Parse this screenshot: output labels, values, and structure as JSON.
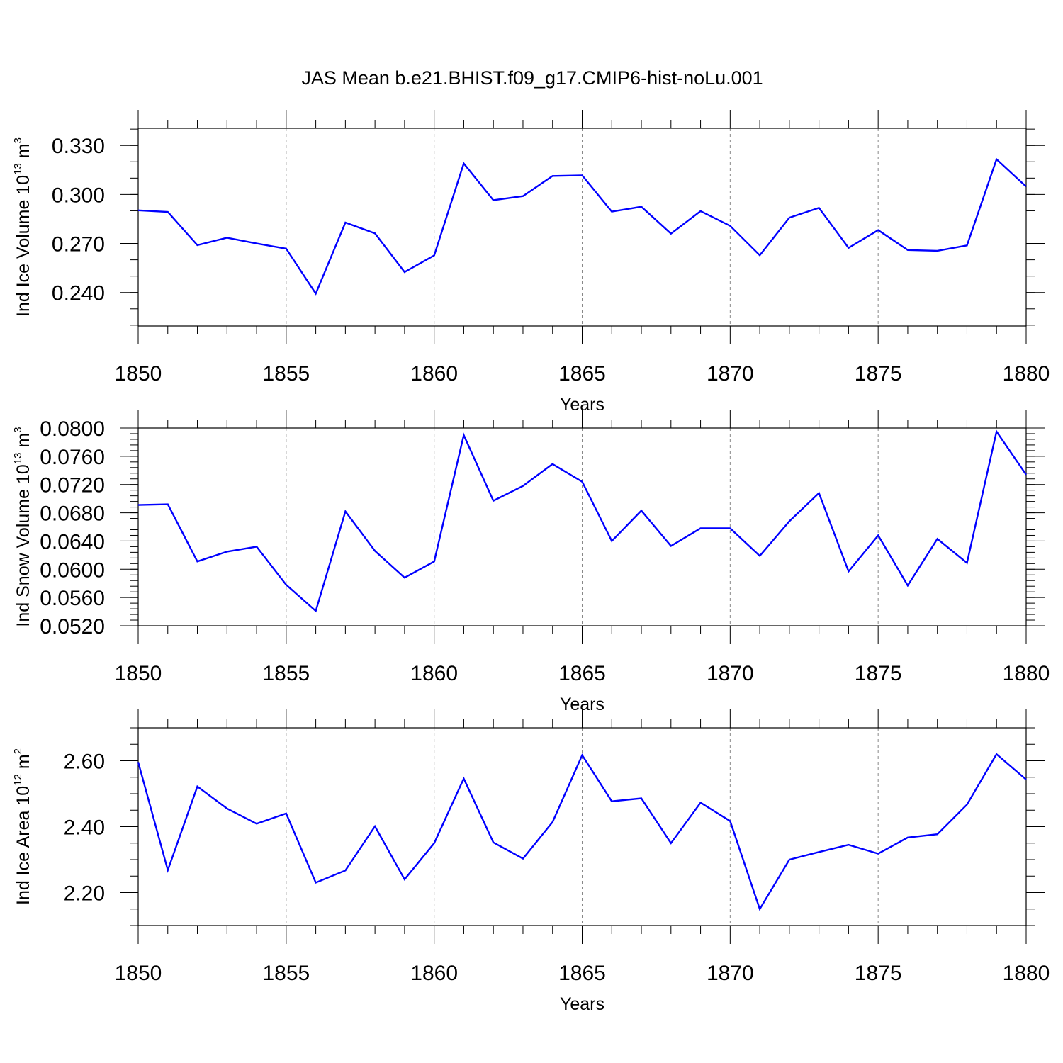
{
  "figure": {
    "title": "JAS Mean b.e21.BHIST.f09_g17.CMIP6-hist-noLu.001",
    "line_color": "#0000ff",
    "frame_color": "#000000",
    "grid_color": "#888888",
    "background": "#ffffff"
  },
  "chart_data": [
    {
      "type": "line",
      "xlabel": "Years",
      "ylabel": {
        "text": "Ind Ice Volume 10",
        "exponent": "13",
        "unit": " m",
        "unit_exponent": "3"
      },
      "xlim": [
        1850,
        1880
      ],
      "ylim": [
        0.2195,
        0.3405
      ],
      "xticks": [
        1850,
        1855,
        1860,
        1865,
        1870,
        1875,
        1880
      ],
      "xtick_labels": [
        "1850",
        "1855",
        "1860",
        "1865",
        "1870",
        "1875",
        "1880"
      ],
      "yticks": [
        0.24,
        0.27,
        0.3,
        0.33
      ],
      "ytick_labels": [
        "0.240",
        "0.270",
        "0.300",
        "0.330"
      ],
      "y_minor_step": 0.01,
      "x": [
        1850,
        1851,
        1852,
        1853,
        1854,
        1855,
        1856,
        1857,
        1858,
        1859,
        1860,
        1861,
        1862,
        1863,
        1864,
        1865,
        1866,
        1867,
        1868,
        1869,
        1870,
        1871,
        1872,
        1873,
        1874,
        1875,
        1876,
        1877,
        1878,
        1879,
        1880
      ],
      "series": [
        {
          "name": "Ind Ice Volume",
          "values": [
            0.2903,
            0.2893,
            0.269,
            0.2735,
            0.27,
            0.2668,
            0.2393,
            0.2828,
            0.2762,
            0.2525,
            0.2627,
            0.319,
            0.2965,
            0.299,
            0.3113,
            0.3117,
            0.2895,
            0.2925,
            0.276,
            0.2898,
            0.2808,
            0.2628,
            0.2858,
            0.2918,
            0.2673,
            0.2782,
            0.266,
            0.2655,
            0.2688,
            0.3215,
            0.3048
          ]
        }
      ]
    },
    {
      "type": "line",
      "xlabel": "Years",
      "ylabel": {
        "text": "Ind Snow Volume 10",
        "exponent": "13",
        "unit": " m",
        "unit_exponent": "3"
      },
      "xlim": [
        1850,
        1880
      ],
      "ylim": [
        0.052,
        0.08
      ],
      "xticks": [
        1850,
        1855,
        1860,
        1865,
        1870,
        1875,
        1880
      ],
      "xtick_labels": [
        "1850",
        "1855",
        "1860",
        "1865",
        "1870",
        "1875",
        "1880"
      ],
      "yticks": [
        0.052,
        0.056,
        0.06,
        0.064,
        0.068,
        0.072,
        0.076,
        0.08
      ],
      "ytick_labels": [
        "0.0520",
        "0.0560",
        "0.0600",
        "0.0640",
        "0.0680",
        "0.0720",
        "0.0760",
        "0.0800"
      ],
      "y_minor_step": 0.0008,
      "x": [
        1850,
        1851,
        1852,
        1853,
        1854,
        1855,
        1856,
        1857,
        1858,
        1859,
        1860,
        1861,
        1862,
        1863,
        1864,
        1865,
        1866,
        1867,
        1868,
        1869,
        1870,
        1871,
        1872,
        1873,
        1874,
        1875,
        1876,
        1877,
        1878,
        1879,
        1880
      ],
      "series": [
        {
          "name": "Ind Snow Volume",
          "values": [
            0.0691,
            0.0692,
            0.0611,
            0.0625,
            0.0632,
            0.0578,
            0.0541,
            0.0682,
            0.0626,
            0.0588,
            0.0611,
            0.079,
            0.0697,
            0.0718,
            0.0749,
            0.0724,
            0.064,
            0.0683,
            0.0633,
            0.0658,
            0.0658,
            0.0619,
            0.0668,
            0.0708,
            0.0597,
            0.0648,
            0.0577,
            0.0643,
            0.0609,
            0.0795,
            0.0734
          ]
        }
      ]
    },
    {
      "type": "line",
      "xlabel": "Years",
      "ylabel": {
        "text": "Ind Ice Area 10",
        "exponent": "12",
        "unit": " m",
        "unit_exponent": "2"
      },
      "xlim": [
        1850,
        1880
      ],
      "ylim": [
        2.1,
        2.7
      ],
      "xticks": [
        1850,
        1855,
        1860,
        1865,
        1870,
        1875,
        1880
      ],
      "xtick_labels": [
        "1850",
        "1855",
        "1860",
        "1865",
        "1870",
        "1875",
        "1880"
      ],
      "yticks": [
        2.2,
        2.4,
        2.6
      ],
      "ytick_labels": [
        "2.20",
        "2.40",
        "2.60"
      ],
      "y_minor_step": 0.05,
      "x": [
        1850,
        1851,
        1852,
        1853,
        1854,
        1855,
        1856,
        1857,
        1858,
        1859,
        1860,
        1861,
        1862,
        1863,
        1864,
        1865,
        1866,
        1867,
        1868,
        1869,
        1870,
        1871,
        1872,
        1873,
        1874,
        1875,
        1876,
        1877,
        1878,
        1879,
        1880
      ],
      "series": [
        {
          "name": "Ind Ice Area",
          "values": [
            2.596,
            2.268,
            2.522,
            2.455,
            2.409,
            2.44,
            2.23,
            2.267,
            2.401,
            2.24,
            2.35,
            2.546,
            2.352,
            2.303,
            2.414,
            2.617,
            2.477,
            2.486,
            2.35,
            2.473,
            2.417,
            2.15,
            2.3,
            2.323,
            2.345,
            2.318,
            2.367,
            2.377,
            2.467,
            2.62,
            2.543
          ]
        }
      ]
    }
  ]
}
